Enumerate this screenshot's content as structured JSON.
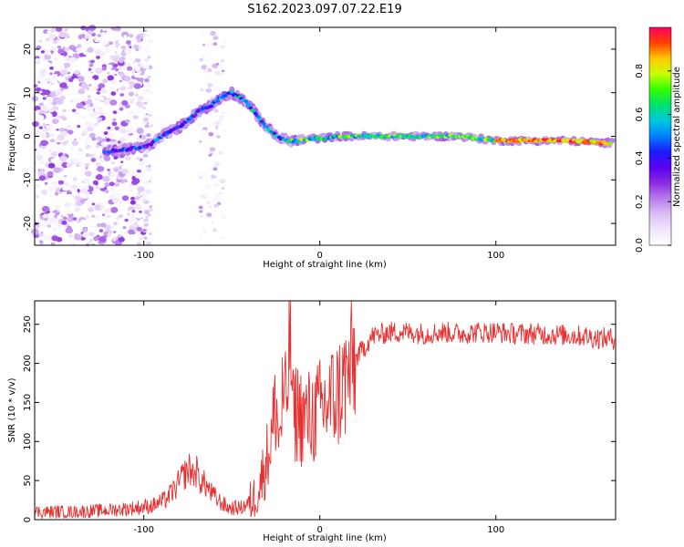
{
  "title": "S162.2023.097.07.22.E19",
  "colors": {
    "snr_line": "#e83030",
    "colormap": [
      "#ffffff",
      "#f0e6fb",
      "#d9bff5",
      "#b77deb",
      "#8a2be2",
      "#5b00f0",
      "#1a1aff",
      "#0080ff",
      "#00c8e0",
      "#00e070",
      "#30ff00",
      "#c8ff00",
      "#ffc800",
      "#ff4000",
      "#ff0060"
    ]
  },
  "chart_data": [
    {
      "type": "heatmap",
      "xlabel": "Height of straight line (km)",
      "ylabel": "Frequency (Hz)",
      "xlim": [
        -162,
        168
      ],
      "ylim": [
        -25,
        25
      ],
      "xticks": [
        -100,
        0,
        100
      ],
      "yticks": [
        -20,
        -10,
        0,
        10,
        20
      ],
      "ridge": {
        "description_free": true,
        "x": [
          -122,
          -110,
          -100,
          -95,
          -88,
          -80,
          -74,
          -68,
          -62,
          -56,
          -50,
          -46,
          -42,
          -38,
          -34,
          -30,
          -26,
          -22,
          -18,
          -12,
          -5,
          0,
          10,
          20,
          40,
          60,
          80,
          100,
          120,
          140,
          160,
          166
        ],
        "y": [
          -3.5,
          -3,
          -2.5,
          -1.5,
          0.5,
          2,
          4,
          6,
          7,
          9,
          10,
          9,
          8,
          6,
          4,
          2,
          0.5,
          -0.5,
          -1,
          -1,
          -0.5,
          -0.5,
          0,
          0,
          0,
          0,
          0,
          -1,
          -1,
          -1,
          -1.5,
          -1.5
        ]
      },
      "colorbar": {
        "label": "Normalized spectral amplitude",
        "min": 0.0,
        "max": 1.0,
        "ticks": [
          0.0,
          0.2,
          0.4,
          0.6,
          0.8
        ],
        "tick_labels": [
          "0.0",
          "0.2",
          "0.4",
          "0.6",
          "0.8"
        ]
      }
    },
    {
      "type": "line",
      "xlabel": "Height of straight line (km)",
      "ylabel": "SNR (10 * v/v)",
      "xlim": [
        -162,
        168
      ],
      "ylim": [
        0,
        280
      ],
      "xticks": [
        -100,
        0,
        100
      ],
      "yticks": [
        0,
        50,
        100,
        150,
        200,
        250
      ],
      "series": [
        {
          "x": [
            -162,
            -140,
            -120,
            -105,
            -95,
            -88,
            -82,
            -78,
            -76,
            -74,
            -72,
            -70,
            -68,
            -65,
            -62,
            -58,
            -52,
            -45,
            -38,
            -34,
            -30,
            -27,
            -25,
            -23,
            -21,
            -19,
            -17,
            -15,
            -13,
            -10,
            -5,
            0,
            5,
            10,
            15,
            20,
            25,
            30,
            40,
            50,
            60,
            70,
            80,
            90,
            100,
            110,
            120,
            130,
            140,
            150,
            160,
            168
          ],
          "y": [
            10,
            10,
            12,
            15,
            18,
            25,
            40,
            55,
            60,
            65,
            58,
            62,
            50,
            45,
            35,
            25,
            15,
            15,
            25,
            45,
            80,
            110,
            150,
            100,
            160,
            140,
            250,
            130,
            140,
            130,
            130,
            140,
            150,
            160,
            180,
            205,
            220,
            235,
            240,
            240,
            238,
            240,
            238,
            240,
            240,
            238,
            238,
            237,
            236,
            235,
            232,
            232
          ]
        }
      ]
    }
  ]
}
